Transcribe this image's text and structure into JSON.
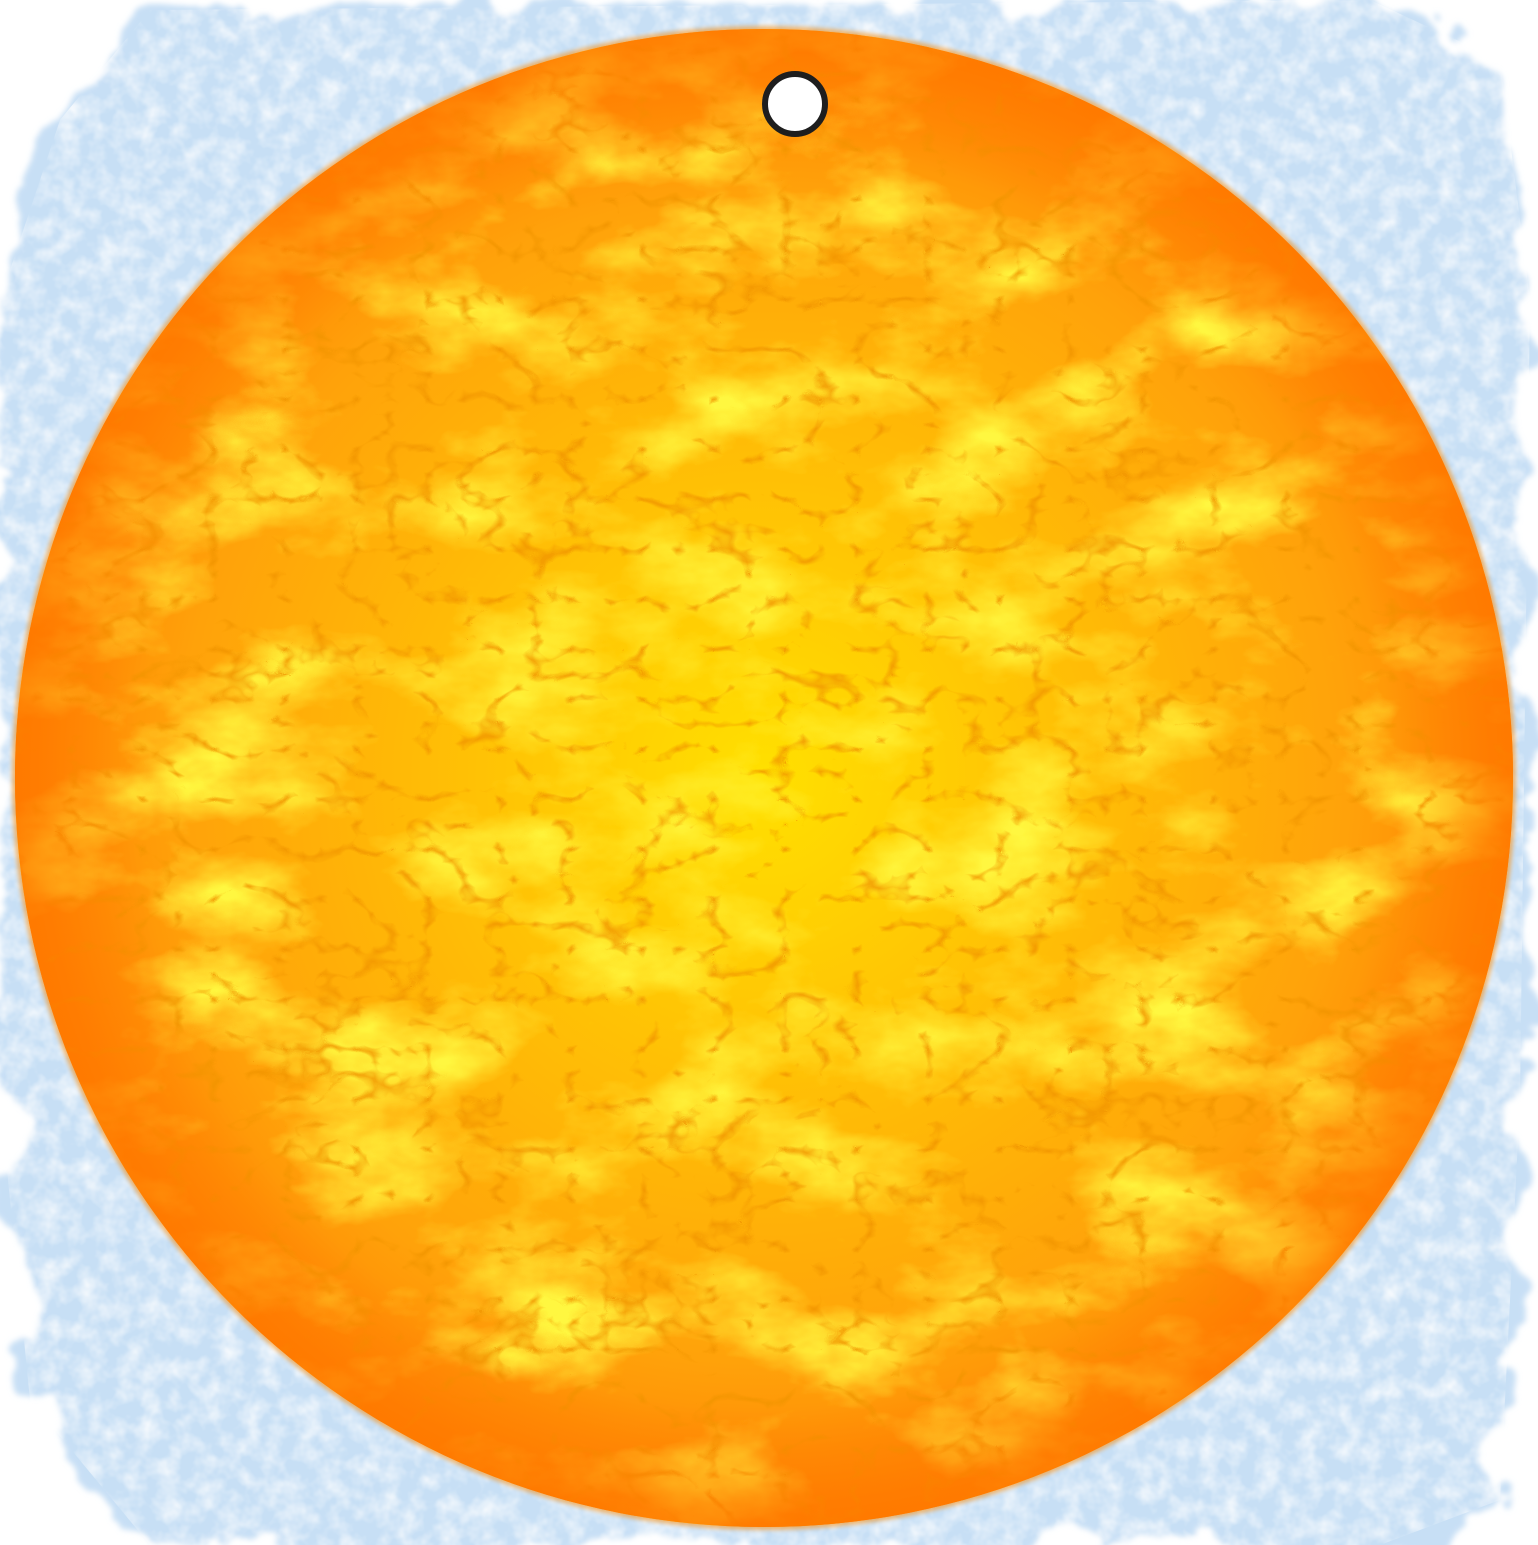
{
  "scene": {
    "background_color": "#ffffff",
    "wash_color": "#c7dff5",
    "wash_light_color": "#e3effa"
  },
  "sun": {
    "icon": "sun-icon",
    "colors": {
      "edge": "#ff7a00",
      "base": "#ffa20a",
      "mid": "#ff8a05",
      "bright": "#ffe000",
      "highlight": "#fff23a",
      "vein": "#e65c00"
    }
  },
  "marker": {
    "icon": "circle-marker-icon",
    "fill_color": "#ffffff",
    "border_color": "#1e1e1e"
  }
}
